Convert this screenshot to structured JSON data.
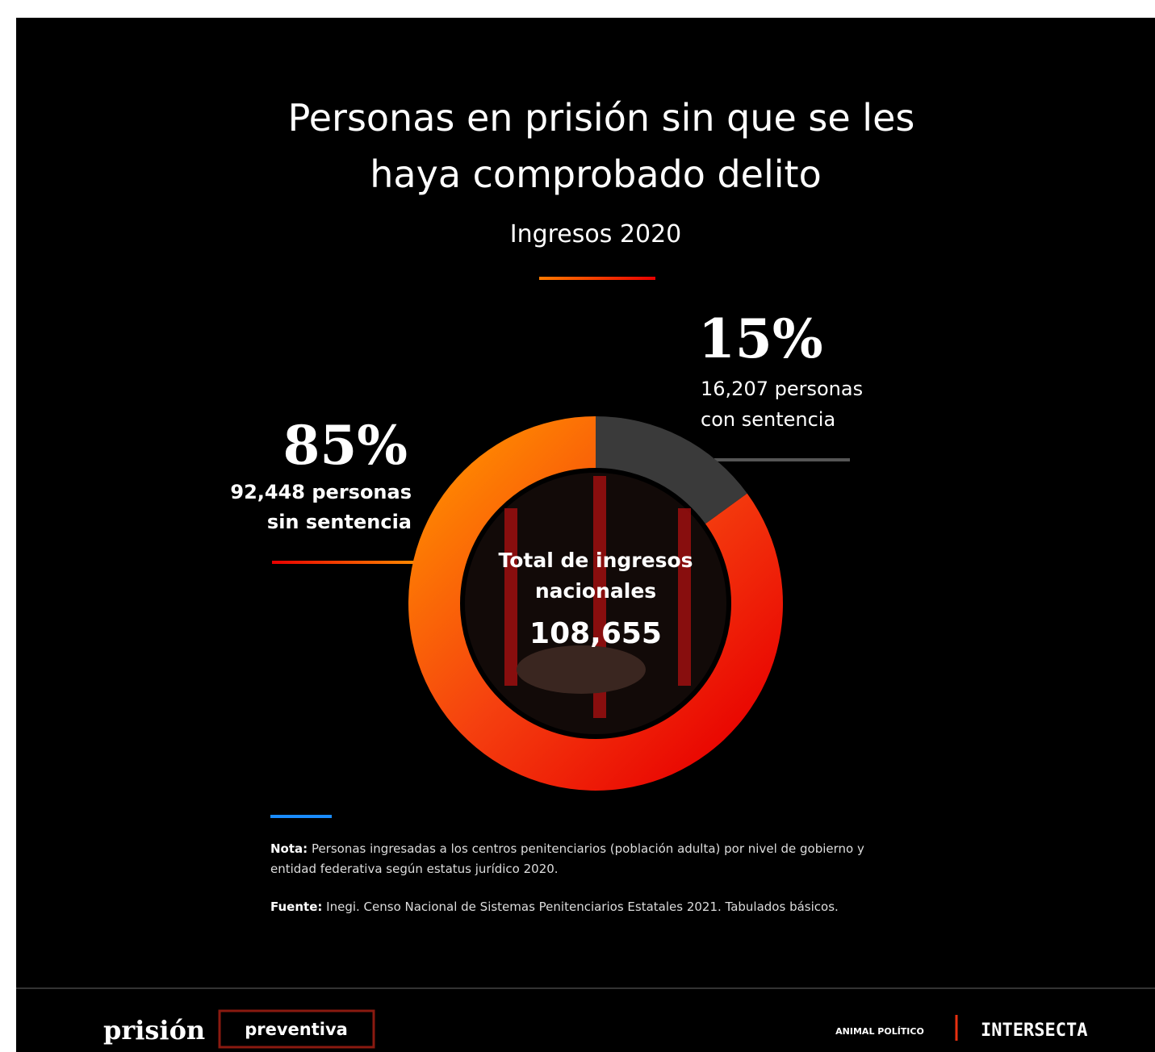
{
  "chart_data": {
    "type": "pie",
    "title": [
      "Personas en prisión sin que se les",
      "haya comprobado delito"
    ],
    "subtitle": "Ingresos 2020",
    "values": [
      85,
      15
    ],
    "value_labels": [
      "85%",
      "15%"
    ],
    "labels": [
      [
        "92,448 personas",
        "sin sentencia"
      ],
      [
        "16,207 personas",
        "con sentencia"
      ]
    ],
    "colors": [
      "#f2450f",
      "#3a3a3a"
    ],
    "center": {
      "title": [
        "Total de ingresos",
        "nacionales"
      ],
      "value": "108,655"
    }
  },
  "notes": [
    {
      "label": "Nota:",
      "text": "Personas ingresadas a los centros penitenciarios (población adulta) por nivel de gobierno y entidad federativa según estatus jurídico 2020."
    },
    {
      "label": "Fuente:",
      "text": "Inegi. Censo Nacional de Sistemas Penitenciarios Estatales 2021. Tabulados básicos."
    }
  ],
  "footer": {
    "brand": "prisión",
    "brand_box": "preventiva",
    "logos": [
      "ANIMAL POLÍTICO",
      "INTERSECTA"
    ]
  }
}
